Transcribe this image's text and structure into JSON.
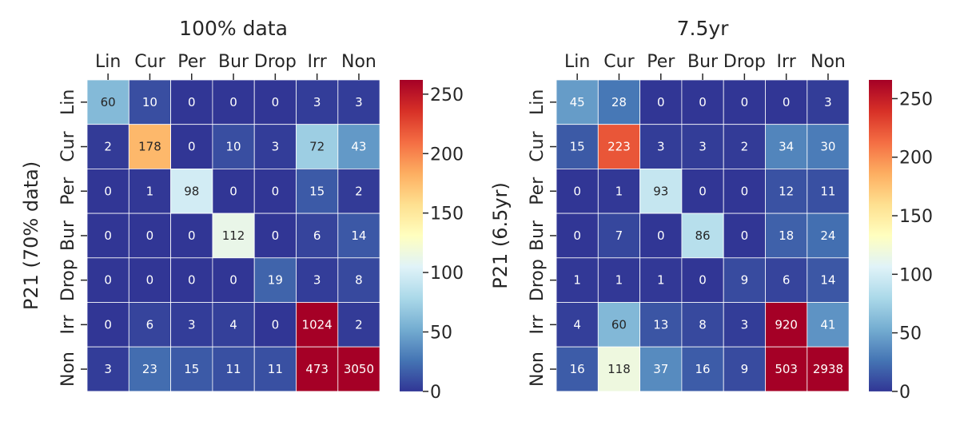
{
  "chart_data": [
    {
      "type": "heatmap",
      "title": "100% data",
      "ylabel": "P21 (70% data)",
      "xlabel": "",
      "columns": [
        "Lin",
        "Cur",
        "Per",
        "Bur",
        "Drop",
        "Irr",
        "Non"
      ],
      "rows": [
        "Lin",
        "Cur",
        "Per",
        "Bur",
        "Drop",
        "Irr",
        "Non"
      ],
      "values": [
        [
          60,
          10,
          0,
          0,
          0,
          3,
          3
        ],
        [
          2,
          178,
          0,
          10,
          3,
          72,
          43
        ],
        [
          0,
          1,
          98,
          0,
          0,
          15,
          2
        ],
        [
          0,
          0,
          0,
          112,
          0,
          6,
          14
        ],
        [
          0,
          0,
          0,
          0,
          19,
          3,
          8
        ],
        [
          0,
          6,
          3,
          4,
          0,
          1024,
          2
        ],
        [
          3,
          23,
          15,
          11,
          11,
          473,
          3050
        ]
      ],
      "vmin": 0,
      "vmax": 262,
      "colormap": "RdYlBu_r",
      "colorbar_ticks": [
        0,
        50,
        100,
        150,
        200,
        250
      ],
      "colorbar_tick_labels": [
        "0",
        "50",
        "100",
        "150",
        "200",
        "250"
      ]
    },
    {
      "type": "heatmap",
      "title": "7.5yr",
      "ylabel": "P21 (6.5yr)",
      "xlabel": "",
      "columns": [
        "Lin",
        "Cur",
        "Per",
        "Bur",
        "Drop",
        "Irr",
        "Non"
      ],
      "rows": [
        "Lin",
        "Cur",
        "Per",
        "Bur",
        "Drop",
        "Irr",
        "Non"
      ],
      "values": [
        [
          45,
          28,
          0,
          0,
          0,
          0,
          3
        ],
        [
          15,
          223,
          3,
          3,
          2,
          34,
          30
        ],
        [
          0,
          1,
          93,
          0,
          0,
          12,
          11
        ],
        [
          0,
          7,
          0,
          86,
          0,
          18,
          24
        ],
        [
          1,
          1,
          1,
          0,
          9,
          6,
          14
        ],
        [
          4,
          60,
          13,
          8,
          3,
          920,
          41
        ],
        [
          16,
          118,
          37,
          16,
          9,
          503,
          2938
        ]
      ],
      "vmin": 0,
      "vmax": 266,
      "colormap": "RdYlBu_r",
      "colorbar_ticks": [
        0,
        50,
        100,
        150,
        200,
        250
      ],
      "colorbar_tick_labels": [
        "0",
        "50",
        "100",
        "150",
        "200",
        "250"
      ]
    }
  ]
}
